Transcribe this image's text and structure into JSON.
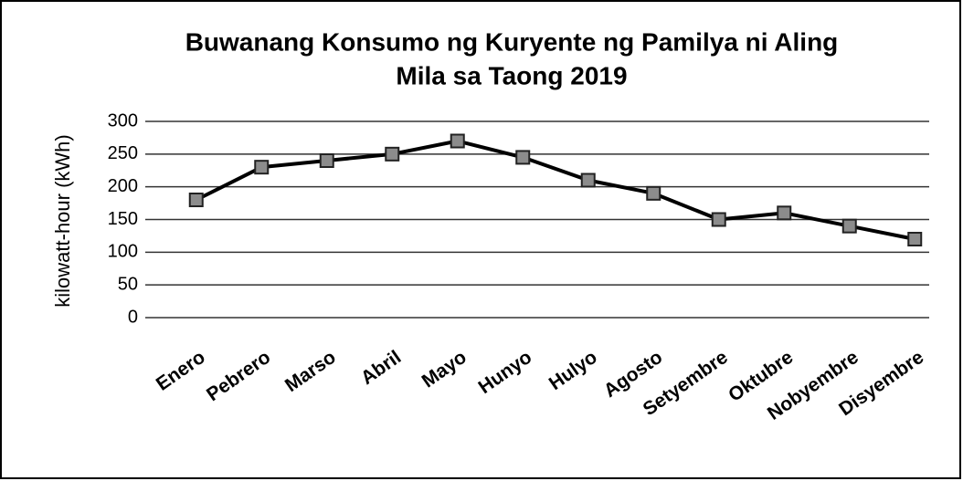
{
  "chart_data": {
    "type": "line",
    "title": [
      "Buwanang Konsumo ng Kuryente ng Pamilya ni Aling",
      "Mila sa Taong 2019"
    ],
    "y_label": "kilowatt-hour (kWh)",
    "categories": [
      "Enero",
      "Pebrero",
      "Marso",
      "Abril",
      "Mayo",
      "Hunyo",
      "Hulyo",
      "Agosto",
      "Setyembre",
      "Oktubre",
      "Nobyembre",
      "Disyembre"
    ],
    "series": [
      {
        "name": "kilowatt-hour (kWh)",
        "color": "#000000",
        "marker_color": "#8c8c8c",
        "values": [
          180,
          230,
          240,
          250,
          270,
          245,
          210,
          190,
          150,
          160,
          140,
          120
        ]
      }
    ],
    "ylim": [
      0,
      300
    ],
    "yticks": [
      0,
      50,
      100,
      150,
      200,
      250,
      300
    ],
    "grid": true
  }
}
